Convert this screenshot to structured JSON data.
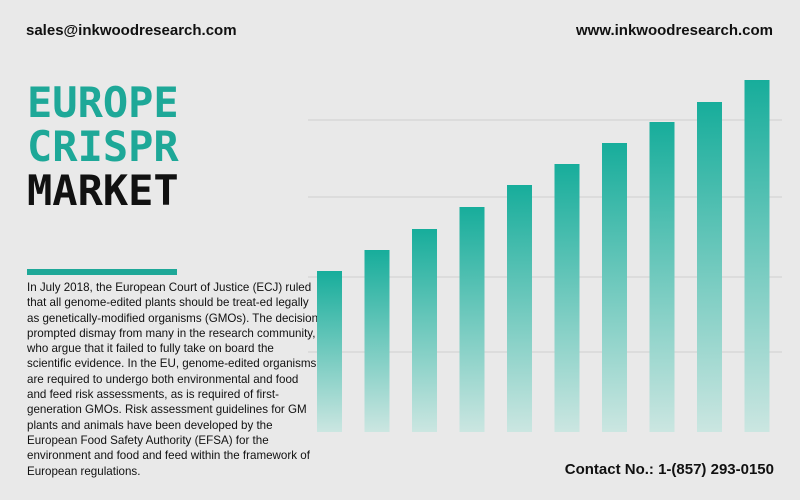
{
  "header": {
    "email": "sales@inkwoodresearch.com",
    "website": "www.inkwoodresearch.com"
  },
  "title": {
    "line1": "EUROPE",
    "line2": "CRISPR",
    "line3": "MARKET"
  },
  "description": "In July 2018, the European Court of Justice (ECJ) ruled that all genome-edited plants should be treat-ed legally as genetically-modified organisms (GMOs). The decision prompted dismay from many in the research community, who argue that it failed to fully take on board the scientific evidence. In the EU, genome-edited organisms are required to undergo both environmental and food and feed risk assessments, as is required of first-generation GMOs. Risk assessment guidelines for GM plants and animals have been developed by the European Food Safety Authority (EFSA) for the environment and food and feed within the framework of European regulations.",
  "contact": "Contact No.: 1-(857) 293-0150",
  "colors": {
    "accent": "#1ea898",
    "bar_top": "#17ad9b",
    "bar_bottom": "#cbe6e1"
  },
  "chart_data": {
    "type": "bar",
    "categories": [
      "",
      "",
      "",
      "",
      "",
      "",
      "",
      "",
      "",
      ""
    ],
    "values": [
      161,
      182,
      203,
      225,
      247,
      268,
      289,
      310,
      330,
      352
    ],
    "title": "",
    "xlabel": "",
    "ylabel": "",
    "ylim": [
      0,
      360
    ],
    "grid": true,
    "gridlines": [
      80,
      155,
      235,
      312
    ],
    "legend": "none"
  }
}
